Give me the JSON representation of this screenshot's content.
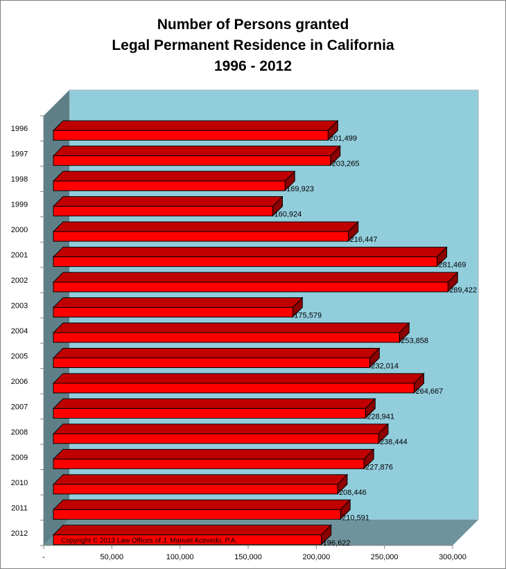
{
  "chart_data": {
    "type": "bar",
    "orientation": "horizontal",
    "style": "3d",
    "title_lines": [
      "Number of Persons granted",
      "Legal Permanent Residence in California",
      "1996 - 2012"
    ],
    "categories": [
      "1996",
      "1997",
      "1998",
      "1999",
      "2000",
      "2001",
      "2002",
      "2003",
      "2004",
      "2005",
      "2006",
      "2007",
      "2008",
      "2009",
      "2010",
      "2011",
      "2012"
    ],
    "values": [
      201499,
      203265,
      169923,
      160924,
      216447,
      281469,
      289422,
      175579,
      253858,
      232014,
      264667,
      228941,
      238444,
      227876,
      208446,
      210591,
      196622
    ],
    "value_labels": [
      "201,499",
      "203,265",
      "169,923",
      "160,924",
      "216,447",
      "281,469",
      "289,422",
      "175,579",
      "253,858",
      "232,014",
      "264,667",
      "228,941",
      "238,444",
      "227,876",
      "208,446",
      "210,591",
      "196,622"
    ],
    "xlim": [
      0,
      300000
    ],
    "x_ticks": [
      0,
      50000,
      100000,
      150000,
      200000,
      250000,
      300000
    ],
    "x_tick_labels": [
      "-",
      "50,000",
      "100,000",
      "150,000",
      "200,000",
      "250,000",
      "300,000"
    ],
    "annotation": "Copyright © 2013 Law Offices of J. Manuel Acevedo, P.A.",
    "grid": false,
    "legend": "none",
    "colors": {
      "bar_front": "#ff0000",
      "bar_top": "#c00000",
      "bar_side": "#8b0000",
      "back_wall": "#92cddc",
      "side_wall": "#5f7f88",
      "floor": "#6f939c"
    }
  }
}
